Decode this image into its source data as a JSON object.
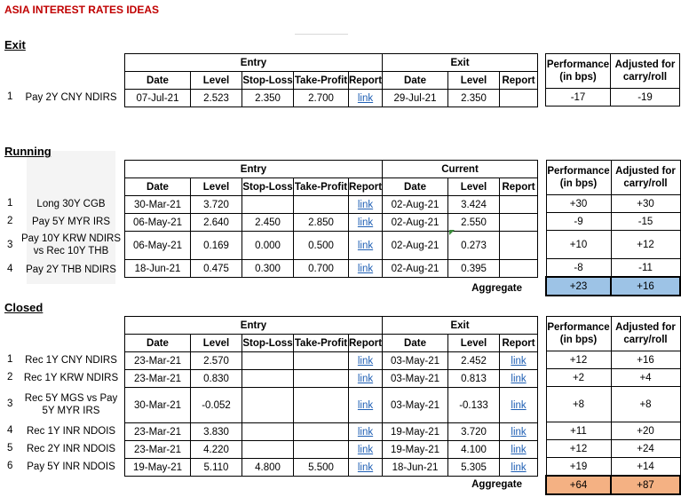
{
  "title": "ASIA INTEREST RATES IDEAS",
  "colors": {
    "title": "#c00000",
    "link": "#1f5fb4",
    "running_aggregate": "#9dc3e6",
    "closed_aggregate": "#f4b183"
  },
  "headers": {
    "entry": "Entry",
    "exit": "Exit",
    "current": "Current",
    "date": "Date",
    "level": "Level",
    "stop_loss": "Stop-Loss",
    "take_profit": "Take-Profit",
    "report": "Report",
    "performance": "Performance (in bps)",
    "adjusted": "Adjusted for carry/roll"
  },
  "exit": {
    "label": "Exit",
    "rows": [
      {
        "num": "1",
        "instrument": "Pay 2Y CNY NDIRS",
        "entry_date": "07-Jul-21",
        "entry_level": "2.523",
        "stop_loss": "2.350",
        "take_profit": "2.700",
        "report": "link",
        "exit_date": "29-Jul-21",
        "exit_level": "2.350",
        "exit_report": "",
        "performance": "-17",
        "adjusted": "-19"
      }
    ]
  },
  "running": {
    "label": "Running",
    "rows": [
      {
        "num": "1",
        "instrument": "Long 30Y CGB",
        "entry_date": "30-Mar-21",
        "entry_level": "3.720",
        "stop_loss": "",
        "take_profit": "",
        "report": "link",
        "cur_date": "02-Aug-21",
        "cur_level": "3.424",
        "performance": "+30",
        "adjusted": "+30"
      },
      {
        "num": "2",
        "instrument": "Pay 5Y MYR IRS",
        "entry_date": "06-May-21",
        "entry_level": "2.640",
        "stop_loss": "2.450",
        "take_profit": "2.850",
        "report": "link",
        "cur_date": "02-Aug-21",
        "cur_level": "2.550",
        "performance": "-9",
        "adjusted": "-15"
      },
      {
        "num": "3",
        "instrument": "Pay 10Y KRW NDIRS vs Rec 10Y THB",
        "entry_date": "06-May-21",
        "entry_level": "0.169",
        "stop_loss": "0.000",
        "take_profit": "0.500",
        "report": "link",
        "cur_date": "02-Aug-21",
        "cur_level": "0.273",
        "performance": "+10",
        "adjusted": "+12"
      },
      {
        "num": "4",
        "instrument": "Pay 2Y THB NDIRS",
        "entry_date": "18-Jun-21",
        "entry_level": "0.475",
        "stop_loss": "0.300",
        "take_profit": "0.700",
        "report": "link",
        "cur_date": "02-Aug-21",
        "cur_level": "0.395",
        "performance": "-8",
        "adjusted": "-11"
      }
    ],
    "aggregate_label": "Aggregate",
    "aggregate_performance": "+23",
    "aggregate_adjusted": "+16"
  },
  "closed": {
    "label": "Closed",
    "rows": [
      {
        "num": "1",
        "instrument": "Rec 1Y CNY NDIRS",
        "entry_date": "23-Mar-21",
        "entry_level": "2.570",
        "stop_loss": "",
        "take_profit": "",
        "report": "link",
        "exit_date": "03-May-21",
        "exit_level": "2.452",
        "exit_report": "link",
        "performance": "+12",
        "adjusted": "+16"
      },
      {
        "num": "2",
        "instrument": "Rec 1Y KRW NDIRS",
        "entry_date": "23-Mar-21",
        "entry_level": "0.830",
        "stop_loss": "",
        "take_profit": "",
        "report": "link",
        "exit_date": "03-May-21",
        "exit_level": "0.813",
        "exit_report": "link",
        "performance": "+2",
        "adjusted": "+4"
      },
      {
        "num": "3",
        "instrument": "Rec 5Y MGS vs Pay 5Y MYR IRS",
        "entry_date": "30-Mar-21",
        "entry_level": "-0.052",
        "stop_loss": "",
        "take_profit": "",
        "report": "link",
        "exit_date": "03-May-21",
        "exit_level": "-0.133",
        "exit_report": "link",
        "performance": "+8",
        "adjusted": "+8"
      },
      {
        "num": "4",
        "instrument": "Rec 1Y INR NDOIS",
        "entry_date": "23-Mar-21",
        "entry_level": "3.830",
        "stop_loss": "",
        "take_profit": "",
        "report": "link",
        "exit_date": "19-May-21",
        "exit_level": "3.720",
        "exit_report": "link",
        "performance": "+11",
        "adjusted": "+20"
      },
      {
        "num": "5",
        "instrument": "Rec 2Y INR NDOIS",
        "entry_date": "23-Mar-21",
        "entry_level": "4.220",
        "stop_loss": "",
        "take_profit": "",
        "report": "link",
        "exit_date": "19-May-21",
        "exit_level": "4.100",
        "exit_report": "link",
        "performance": "+12",
        "adjusted": "+24"
      },
      {
        "num": "6",
        "instrument": "Pay 5Y INR NDOIS",
        "entry_date": "19-May-21",
        "entry_level": "5.110",
        "stop_loss": "4.800",
        "take_profit": "5.500",
        "report": "link",
        "exit_date": "18-Jun-21",
        "exit_level": "5.305",
        "exit_report": "link",
        "performance": "+19",
        "adjusted": "+14"
      }
    ],
    "aggregate_label": "Aggregate",
    "aggregate_performance": "+64",
    "aggregate_adjusted": "+87"
  }
}
